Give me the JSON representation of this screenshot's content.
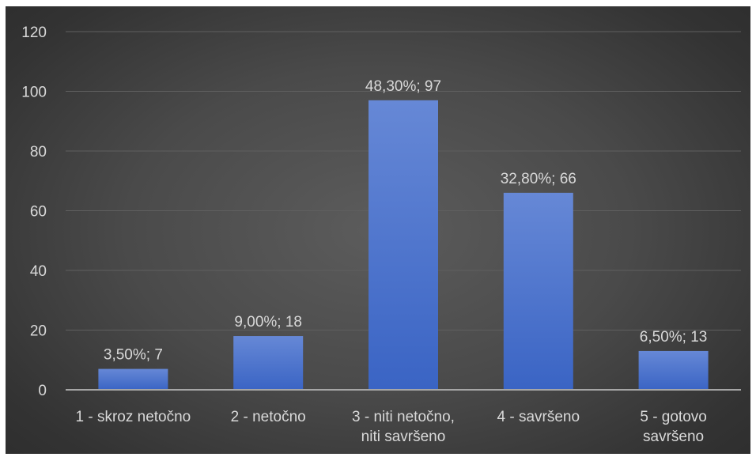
{
  "chart_data": {
    "type": "bar",
    "categories": [
      [
        "1 - skroz netočno"
      ],
      [
        "2 - netočno"
      ],
      [
        "3 - niti netočno,",
        "niti savršeno"
      ],
      [
        "4 - savršeno"
      ],
      [
        "5 - gotovo",
        "savršeno"
      ]
    ],
    "values": [
      7,
      18,
      97,
      66,
      13
    ],
    "data_labels": [
      "3,50%; 7",
      "9,00%; 18",
      "48,30%; 97",
      "32,80%; 66",
      "6,50%; 13"
    ],
    "ylim": [
      0,
      120
    ],
    "yticks": [
      "0",
      "20",
      "40",
      "60",
      "80",
      "100",
      "120"
    ],
    "grid": true,
    "colors": {
      "bar_top": "#6688d6",
      "bar_bottom": "#3a64c4",
      "gridline": "#5f5f5f",
      "axis": "#a6a6a6",
      "text": "#d9d9d9"
    }
  }
}
